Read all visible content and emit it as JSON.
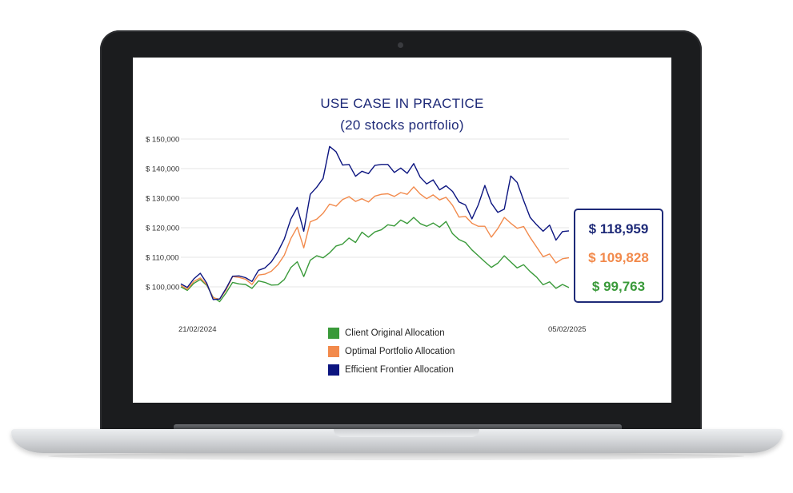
{
  "chart_data": {
    "type": "line",
    "title": "USE CASE IN PRACTICE",
    "subtitle": "(20 stocks portfolio)",
    "x_start_label": "21/02/2024",
    "x_end_label": "05/02/2025",
    "y_tick_labels": [
      "$ 150,000",
      "$ 140,000",
      "$ 130,000",
      "$ 120,000",
      "$ 110,000",
      "$ 100,000"
    ],
    "y_ticks": [
      150000,
      140000,
      130000,
      120000,
      110000,
      100000
    ],
    "ylim": [
      90000,
      150000
    ],
    "grid": true,
    "legend_placement": "bottom",
    "series": [
      {
        "name": "Client Original Allocation",
        "color": "#3a9a3a",
        "final_label": "$ 99,763",
        "values": [
          100000,
          98800,
          101200,
          102500,
          100500,
          96500,
          95000,
          98000,
          101500,
          101000,
          100800,
          99500,
          102000,
          101500,
          100600,
          100700,
          102500,
          106500,
          108500,
          103500,
          109000,
          110500,
          109800,
          111500,
          113800,
          114500,
          116500,
          115000,
          118500,
          116800,
          118600,
          119300,
          121000,
          120600,
          122600,
          121400,
          123500,
          121400,
          120500,
          121600,
          120200,
          122100,
          118000,
          116000,
          115000,
          112500,
          110500,
          108500,
          106600,
          108000,
          110500,
          108400,
          106400,
          107500,
          105200,
          103300,
          100700,
          101700,
          99500,
          100800,
          99763
        ]
      },
      {
        "name": "Optimal Portfolio Allocation",
        "color": "#f28a4c",
        "final_label": "$ 109,828",
        "values": [
          100500,
          99200,
          101800,
          103000,
          100800,
          96300,
          95800,
          99000,
          103500,
          103200,
          102600,
          100800,
          104000,
          104300,
          105300,
          107500,
          110700,
          116300,
          120200,
          113200,
          122000,
          122900,
          124900,
          128000,
          127300,
          129500,
          130500,
          128900,
          129800,
          128700,
          130700,
          131300,
          131500,
          130600,
          131900,
          131300,
          133800,
          131400,
          129800,
          131100,
          129400,
          130300,
          127600,
          123600,
          123800,
          121500,
          120500,
          120500,
          116800,
          119700,
          123500,
          121500,
          119800,
          120400,
          116700,
          113500,
          110200,
          111100,
          108100,
          109500,
          109828
        ]
      },
      {
        "name": "Efficient Frontier Allocation",
        "color": "#0c1580",
        "final_label": "$ 118,959",
        "values": [
          101000,
          99800,
          102700,
          104600,
          101300,
          95700,
          95900,
          99500,
          103600,
          103700,
          103100,
          101800,
          105600,
          106400,
          108500,
          111900,
          116200,
          122900,
          126900,
          118800,
          131300,
          133700,
          136700,
          147500,
          145700,
          141200,
          141400,
          137400,
          139100,
          138300,
          141100,
          141400,
          141400,
          138700,
          140200,
          138400,
          141700,
          137100,
          134800,
          136200,
          132800,
          134200,
          132300,
          128700,
          127700,
          123000,
          127800,
          134300,
          128300,
          125200,
          126300,
          137500,
          135300,
          129200,
          123500,
          121000,
          118800,
          120900,
          115800,
          118700,
          118959
        ]
      }
    ]
  }
}
